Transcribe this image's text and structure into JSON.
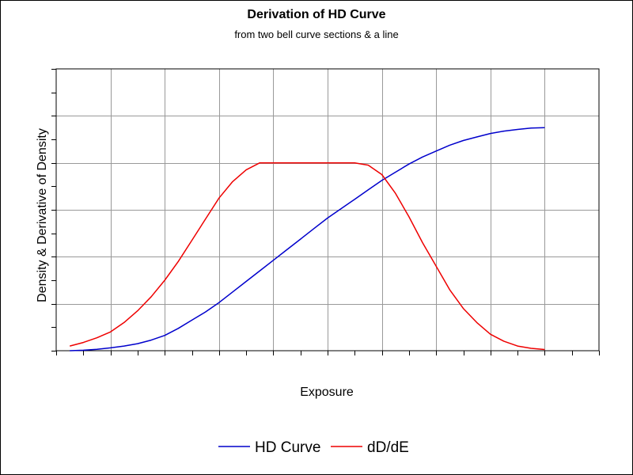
{
  "chart_data": {
    "type": "line",
    "title": "Derivation of HD Curve",
    "subtitle": "from two bell curve sections & a line",
    "xlabel": "Exposure",
    "ylabel": "Density & Derivative of Density",
    "xlim": [
      0,
      20
    ],
    "ylim": [
      0,
      12
    ],
    "grid": true,
    "legend_position": "bottom",
    "x": [
      0.5,
      1.0,
      1.5,
      2.0,
      2.5,
      3.0,
      3.5,
      4.0,
      4.5,
      5.0,
      5.5,
      6.0,
      6.5,
      7.0,
      7.5,
      8.0,
      8.5,
      9.0,
      9.5,
      10.0,
      10.5,
      11.0,
      11.5,
      12.0,
      12.5,
      13.0,
      13.5,
      14.0,
      14.5,
      15.0,
      15.5,
      16.0,
      16.5,
      17.0,
      17.5,
      18.0
    ],
    "series": [
      {
        "name": "HD Curve",
        "color": "#0000cc",
        "values": [
          0.0,
          0.02,
          0.06,
          0.12,
          0.2,
          0.3,
          0.45,
          0.65,
          0.95,
          1.3,
          1.65,
          2.05,
          2.5,
          2.95,
          3.4,
          3.85,
          4.3,
          4.75,
          5.2,
          5.65,
          6.05,
          6.45,
          6.85,
          7.25,
          7.6,
          7.95,
          8.25,
          8.5,
          8.75,
          8.95,
          9.1,
          9.25,
          9.35,
          9.42,
          9.48,
          9.5
        ]
      },
      {
        "name": "dD/dE",
        "color": "#ee0000",
        "values": [
          0.2,
          0.35,
          0.55,
          0.8,
          1.2,
          1.7,
          2.3,
          3.0,
          3.8,
          4.7,
          5.6,
          6.5,
          7.2,
          7.7,
          8.0,
          8.0,
          8.0,
          8.0,
          8.0,
          8.0,
          8.0,
          8.0,
          7.9,
          7.5,
          6.7,
          5.7,
          4.6,
          3.6,
          2.6,
          1.8,
          1.2,
          0.7,
          0.4,
          0.2,
          0.1,
          0.05
        ]
      }
    ]
  }
}
